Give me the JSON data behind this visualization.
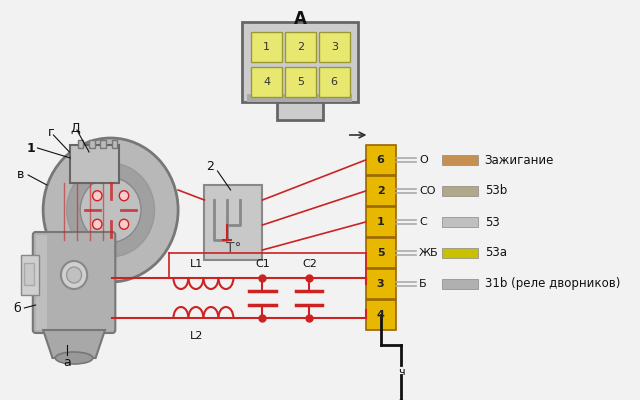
{
  "bg_color": "#f2f2f2",
  "red": "#cc2222",
  "black": "#111111",
  "gray": "#888888",
  "motor_color": "#b0b0b0",
  "motor_dark": "#888888",
  "conn_a_color": "#d8d8d8",
  "cell_color": "#e8e870",
  "conn_b_color": "#e8b800",
  "conn_b_border": "#996600",
  "thermo_color": "#c8c8c8",
  "thermo_border": "#888888",
  "wire_rows": [
    "6",
    "2",
    "1",
    "5",
    "3",
    "4"
  ],
  "wire_info": [
    {
      "abbr": "O",
      "bar1": "#c89050",
      "bar2": "#c89050",
      "label": "Зажигание"
    },
    {
      "abbr": "CO",
      "bar1": "#b0a888",
      "bar2": "#c89050",
      "label": "53b"
    },
    {
      "abbr": "C",
      "bar1": "#c0c0c0",
      "bar2": "#c0c0c0",
      "label": "53"
    },
    {
      "abbr": "ЖБ",
      "bar1": "#c8c000",
      "bar2": "#c8c000",
      "label": "53a"
    },
    {
      "abbr": "Б",
      "bar1": "#b0b0b0",
      "bar2": "#b0b0b0",
      "label": "31b (реле дворников)"
    }
  ]
}
